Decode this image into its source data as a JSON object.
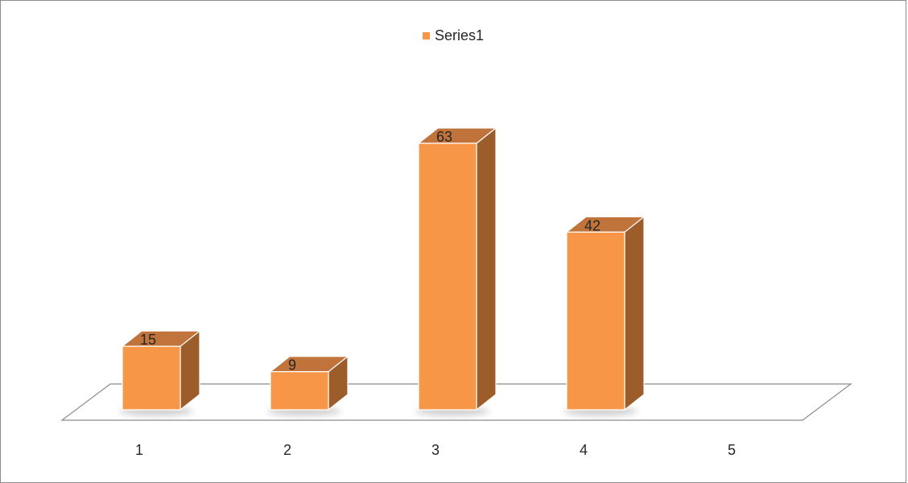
{
  "chart_data": {
    "type": "bar",
    "style": "3d-column",
    "categories": [
      "1",
      "2",
      "3",
      "4",
      "5"
    ],
    "series": [
      {
        "name": "Series1",
        "values": [
          15,
          9,
          63,
          42,
          null
        ],
        "color": "#f79646"
      }
    ],
    "data_labels": [
      "15",
      "9",
      "63",
      "42",
      ""
    ],
    "legend": {
      "position": "top",
      "label": "Series1"
    },
    "colors": {
      "front": "#f79646",
      "top": "#c0733a",
      "side": "#9c5d2b",
      "floor_stroke": "#8c8c8c"
    },
    "grid": false,
    "ylim": [
      0,
      70
    ]
  }
}
